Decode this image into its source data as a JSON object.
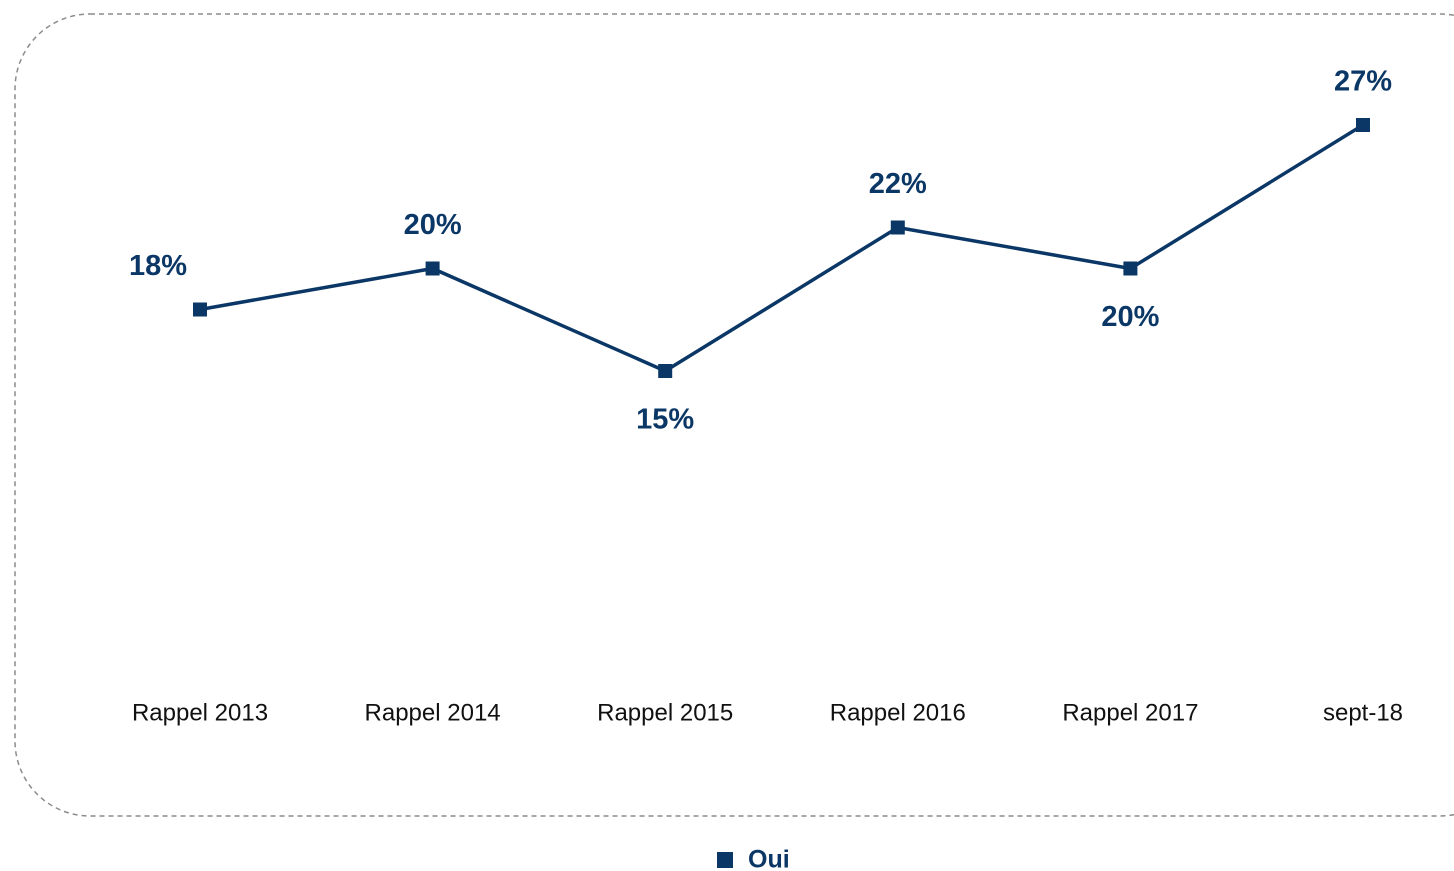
{
  "chart_data": {
    "type": "line",
    "categories": [
      "Rappel 2013",
      "Rappel 2014",
      "Rappel 2015",
      "Rappel 2016",
      "Rappel 2017",
      "sept-18"
    ],
    "series": [
      {
        "name": "Oui",
        "color": "#0b3766",
        "values": [
          18,
          20,
          15,
          22,
          20,
          27
        ],
        "value_labels": [
          "18%",
          "20%",
          "15%",
          "22%",
          "20%",
          "27%"
        ]
      }
    ],
    "ylim": [
      0,
      30
    ],
    "legend": "bottom"
  }
}
